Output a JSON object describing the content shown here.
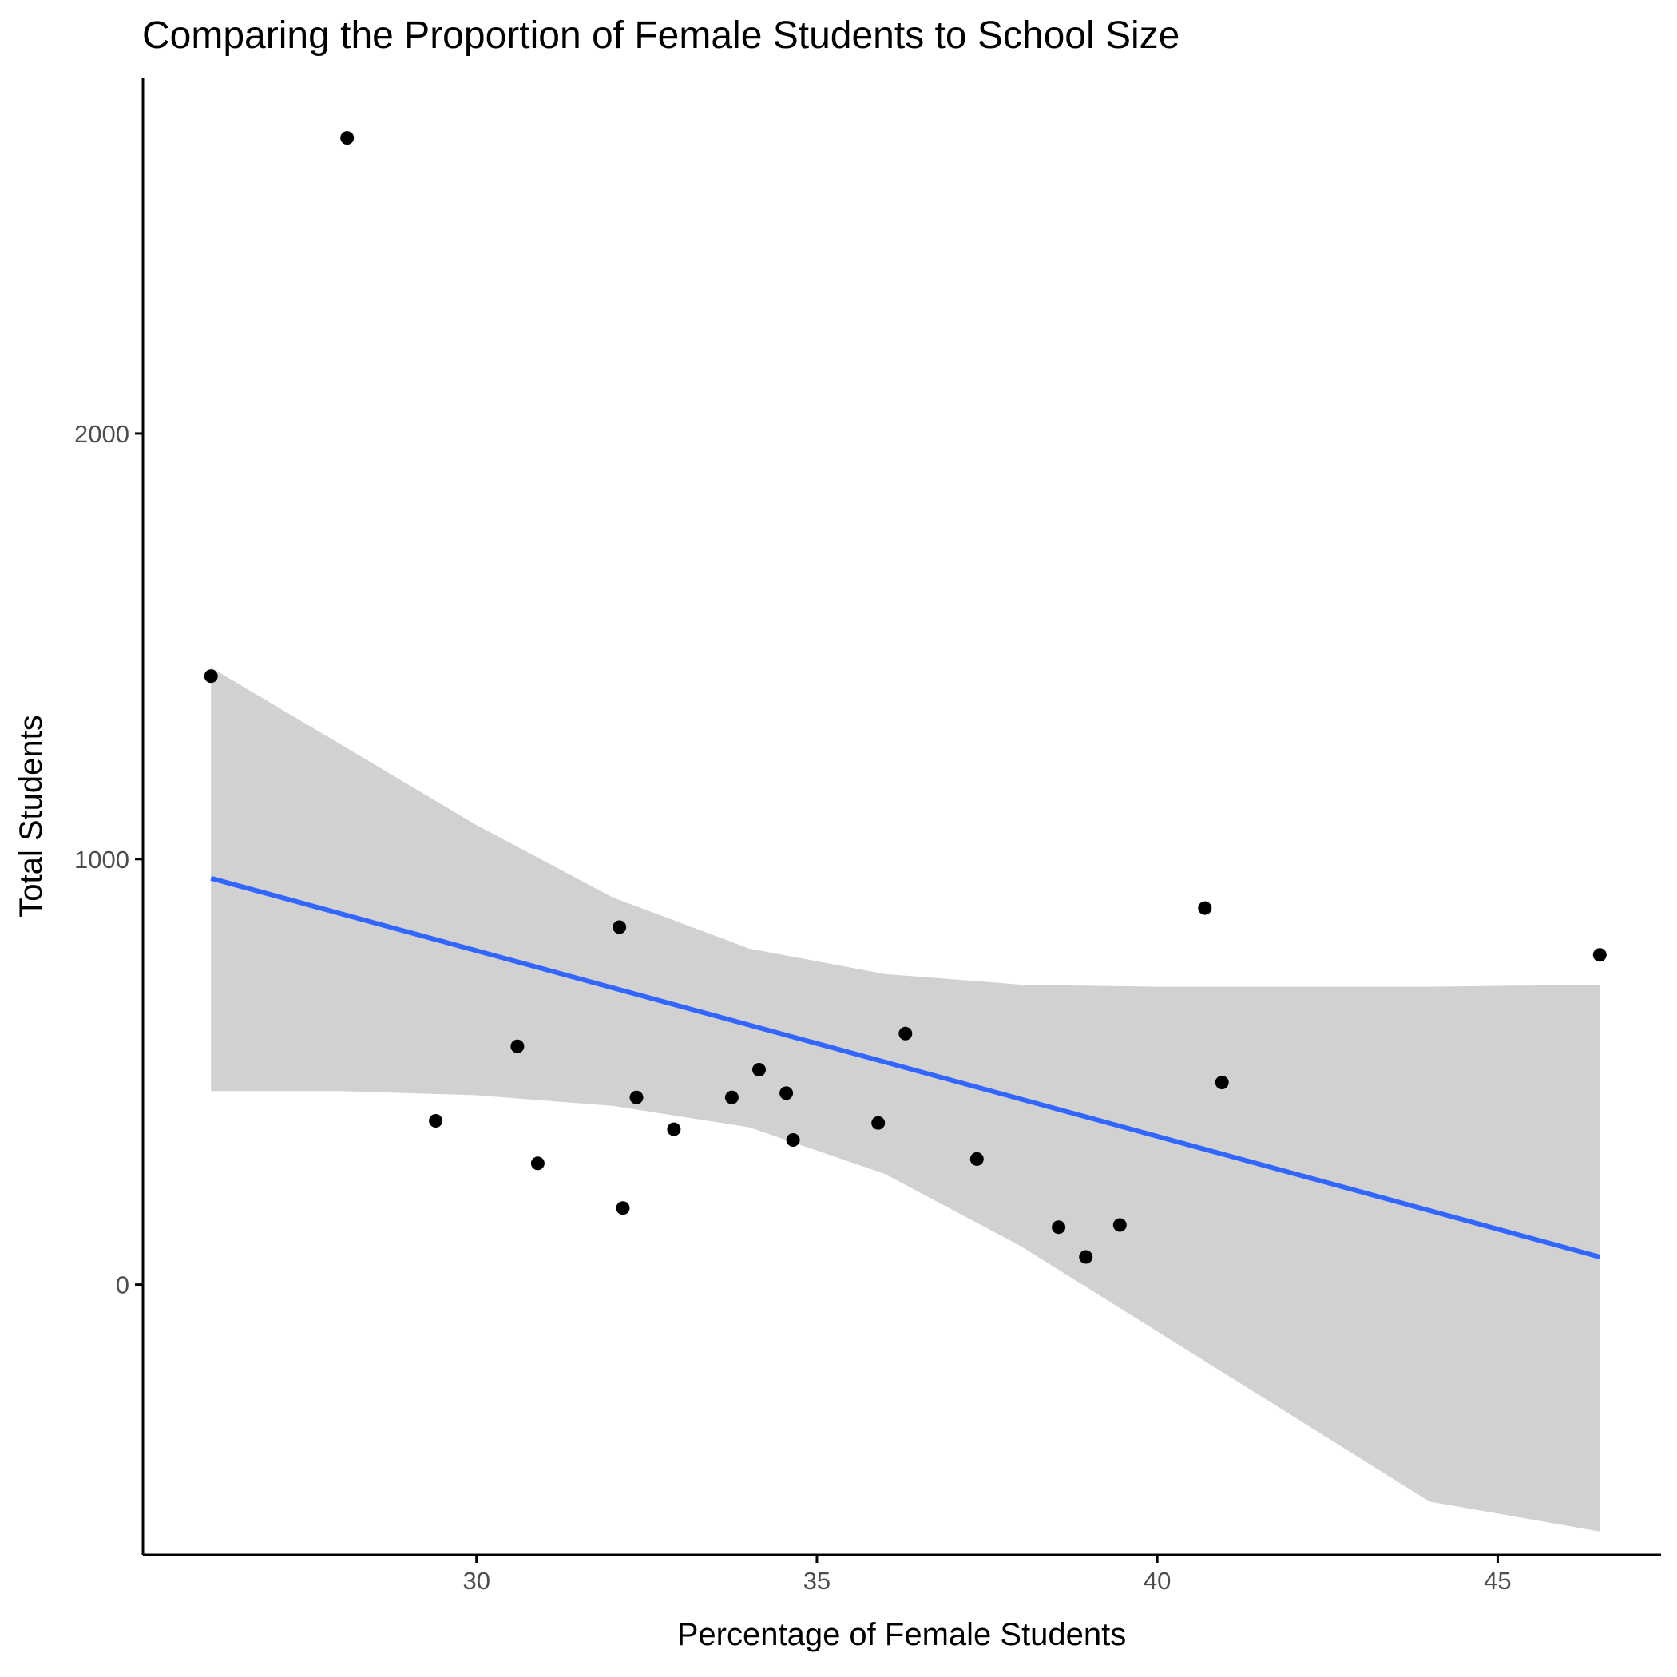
{
  "chart_data": {
    "type": "scatter",
    "title": "Comparing the Proportion of Female Students to School Size",
    "xlabel": "Percentage of Female Students",
    "ylabel": "Total Students",
    "xlim": [
      25.1,
      47.4
    ],
    "ylim": [
      -635,
      2835
    ],
    "xticks": [
      30,
      35,
      40,
      45
    ],
    "xtick_labels": [
      "30",
      "35",
      "40",
      "45"
    ],
    "yticks": [
      0,
      1000,
      2000
    ],
    "ytick_labels": [
      "0",
      "1000",
      "2000"
    ],
    "grid": false,
    "legend": "none",
    "points": [
      {
        "x": 26.1,
        "y": 1430
      },
      {
        "x": 28.1,
        "y": 2695
      },
      {
        "x": 29.4,
        "y": 385
      },
      {
        "x": 30.6,
        "y": 560
      },
      {
        "x": 30.9,
        "y": 285
      },
      {
        "x": 32.1,
        "y": 840
      },
      {
        "x": 32.15,
        "y": 180
      },
      {
        "x": 32.35,
        "y": 440
      },
      {
        "x": 32.9,
        "y": 365
      },
      {
        "x": 33.75,
        "y": 440
      },
      {
        "x": 34.15,
        "y": 505
      },
      {
        "x": 34.55,
        "y": 450
      },
      {
        "x": 34.65,
        "y": 340
      },
      {
        "x": 35.9,
        "y": 380
      },
      {
        "x": 36.3,
        "y": 590
      },
      {
        "x": 37.35,
        "y": 295
      },
      {
        "x": 38.55,
        "y": 135
      },
      {
        "x": 38.95,
        "y": 65
      },
      {
        "x": 39.45,
        "y": 140
      },
      {
        "x": 40.7,
        "y": 885
      },
      {
        "x": 40.95,
        "y": 475
      },
      {
        "x": 46.5,
        "y": 775
      }
    ],
    "trend_line": {
      "method": "linear",
      "x": [
        26.1,
        46.5
      ],
      "y": [
        955,
        65
      ]
    },
    "confidence_band": {
      "x": [
        26.1,
        28,
        30,
        32,
        34,
        36,
        38,
        40,
        42,
        44,
        46.5
      ],
      "upper": [
        1450,
        1270,
        1080,
        910,
        790,
        730,
        705,
        700,
        700,
        700,
        705
      ],
      "lower": [
        455,
        455,
        445,
        420,
        370,
        260,
        90,
        -110,
        -310,
        -510,
        -580
      ]
    },
    "colors": {
      "point": "#000000",
      "trend_line": "#3366FF",
      "band": "#999999",
      "axis": "#000000"
    }
  }
}
